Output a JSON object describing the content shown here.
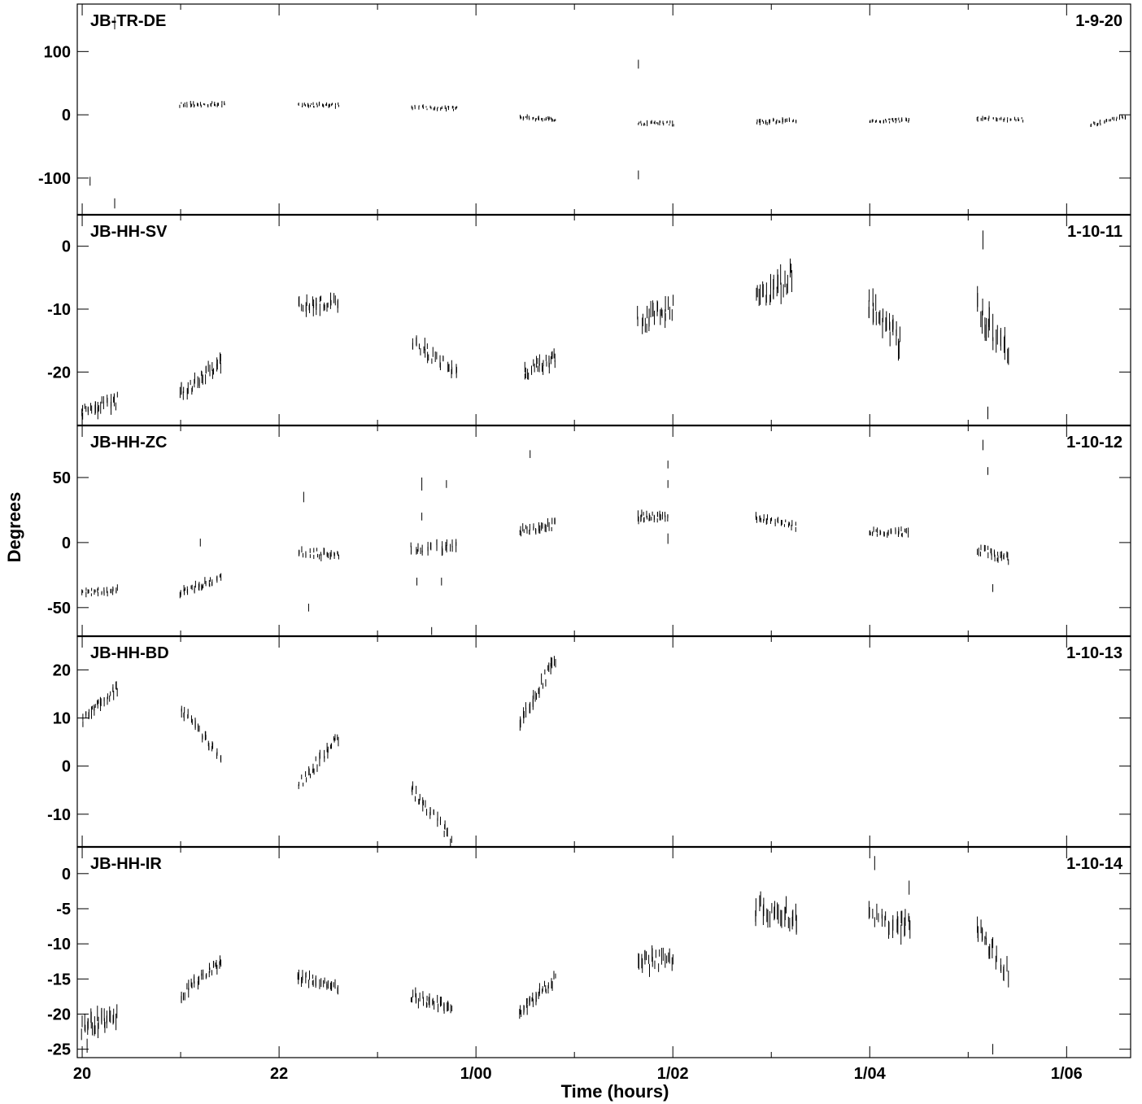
{
  "chart_data": {
    "type": "scatter",
    "xlabel": "Time (hours)",
    "ylabel": "Degrees",
    "xlim": [
      19.95,
      30.65
    ],
    "x_ticks": [
      20,
      22,
      24,
      26,
      28,
      30
    ],
    "x_tick_labels": [
      "20",
      "22",
      "1/00",
      "1/02",
      "1/04",
      "1/06"
    ],
    "x_minor_ticks": [
      21,
      23,
      25,
      27,
      29
    ],
    "mark_style": "vertical-error-bars",
    "color": "#000000",
    "panels": [
      {
        "label": "JB-TR-DE",
        "id": "1-9-20",
        "ylim": [
          -158,
          175
        ],
        "y_ticks": [
          -100,
          0,
          100
        ],
        "segments": [
          {
            "x0": 20.0,
            "x1": 20.33,
            "y0": -30,
            "y1": -8,
            "amp": 0,
            "n": 0
          },
          {
            "x0": 21.0,
            "x1": 21.45,
            "y0": 16,
            "y1": 17,
            "amp": 6,
            "n": 14
          },
          {
            "x0": 22.2,
            "x1": 22.6,
            "y0": 15,
            "y1": 15,
            "amp": 6,
            "n": 14
          },
          {
            "x0": 23.35,
            "x1": 23.8,
            "y0": 12,
            "y1": 10,
            "amp": 6,
            "n": 13
          },
          {
            "x0": 24.45,
            "x1": 24.8,
            "y0": -3,
            "y1": -8,
            "amp": 6,
            "n": 12
          },
          {
            "x0": 25.65,
            "x1": 26.0,
            "y0": -13,
            "y1": -14,
            "amp": 6,
            "n": 12
          },
          {
            "x0": 26.85,
            "x1": 27.25,
            "y0": -12,
            "y1": -8,
            "amp": 6,
            "n": 13
          },
          {
            "x0": 28.0,
            "x1": 28.4,
            "y0": -9,
            "y1": -9,
            "amp": 6,
            "n": 13
          },
          {
            "x0": 29.1,
            "x1": 29.55,
            "y0": -6,
            "y1": -8,
            "amp": 6,
            "n": 13
          },
          {
            "x0": 30.25,
            "x1": 30.6,
            "y0": -16,
            "y1": -2,
            "amp": 6,
            "n": 12
          }
        ],
        "outliers": [
          [
            20.33,
            145,
            20
          ],
          [
            20.33,
            -140,
            16
          ],
          [
            20.08,
            -105,
            14
          ],
          [
            25.65,
            80,
            14
          ],
          [
            25.65,
            -95,
            14
          ]
        ]
      },
      {
        "label": "JB-HH-SV",
        "id": "1-10-11",
        "ylim": [
          -28.5,
          5
        ],
        "y_ticks": [
          -20,
          -10,
          0
        ],
        "segments": [
          {
            "x0": 20.0,
            "x1": 20.35,
            "y0": -26.5,
            "y1": -24.5,
            "amp": 2,
            "n": 12
          },
          {
            "x0": 21.0,
            "x1": 21.4,
            "y0": -23.5,
            "y1": -18.5,
            "amp": 2,
            "n": 12
          },
          {
            "x0": 22.2,
            "x1": 22.6,
            "y0": -9.5,
            "y1": -9,
            "amp": 2,
            "n": 12
          },
          {
            "x0": 23.35,
            "x1": 23.8,
            "y0": -15,
            "y1": -20,
            "amp": 2,
            "n": 12
          },
          {
            "x0": 24.5,
            "x1": 24.8,
            "y0": -20,
            "y1": -18,
            "amp": 2,
            "n": 11
          },
          {
            "x0": 25.65,
            "x1": 26.0,
            "y0": -12,
            "y1": -10,
            "amp": 3,
            "n": 10
          },
          {
            "x0": 26.85,
            "x1": 27.2,
            "y0": -8.5,
            "y1": -5,
            "amp": 3.5,
            "n": 11
          },
          {
            "x0": 28.0,
            "x1": 28.3,
            "y0": -9,
            "y1": -15,
            "amp": 3.5,
            "n": 10
          },
          {
            "x0": 29.1,
            "x1": 29.4,
            "y0": -10,
            "y1": -18,
            "amp": 4.5,
            "n": 9
          }
        ],
        "outliers": [
          [
            20.0,
            -27.5,
            2
          ],
          [
            29.15,
            1,
            3
          ],
          [
            29.2,
            -26.5,
            2
          ]
        ]
      },
      {
        "label": "JB-HH-ZC",
        "id": "1-10-12",
        "ylim": [
          -72,
          90
        ],
        "y_ticks": [
          -50,
          0,
          50
        ],
        "segments": [
          {
            "x0": 20.0,
            "x1": 20.35,
            "y0": -38,
            "y1": -37,
            "amp": 5,
            "n": 12
          },
          {
            "x0": 21.0,
            "x1": 21.4,
            "y0": -38,
            "y1": -27,
            "amp": 6,
            "n": 12
          },
          {
            "x0": 22.2,
            "x1": 22.6,
            "y0": -7,
            "y1": -10,
            "amp": 6,
            "n": 12
          },
          {
            "x0": 23.35,
            "x1": 23.8,
            "y0": -5,
            "y1": -3,
            "amp": 8,
            "n": 10
          },
          {
            "x0": 24.45,
            "x1": 24.8,
            "y0": 8,
            "y1": 14,
            "amp": 7,
            "n": 12
          },
          {
            "x0": 25.65,
            "x1": 25.95,
            "y0": 20,
            "y1": 20,
            "amp": 6,
            "n": 12
          },
          {
            "x0": 26.85,
            "x1": 27.25,
            "y0": 20,
            "y1": 12,
            "amp": 5,
            "n": 12
          },
          {
            "x0": 28.0,
            "x1": 28.4,
            "y0": 8,
            "y1": 8,
            "amp": 5,
            "n": 12
          },
          {
            "x0": 29.1,
            "x1": 29.4,
            "y0": -5,
            "y1": -12,
            "amp": 7,
            "n": 10
          }
        ],
        "outliers": [
          [
            21.2,
            0,
            6
          ],
          [
            22.25,
            35,
            8
          ],
          [
            22.3,
            -50,
            6
          ],
          [
            23.45,
            45,
            10
          ],
          [
            23.45,
            20,
            6
          ],
          [
            23.7,
            45,
            6
          ],
          [
            23.4,
            -30,
            6
          ],
          [
            23.65,
            -30,
            6
          ],
          [
            23.55,
            -68,
            6
          ],
          [
            24.55,
            68,
            6
          ],
          [
            25.95,
            60,
            6
          ],
          [
            25.95,
            45,
            6
          ],
          [
            25.95,
            3,
            8
          ],
          [
            29.15,
            75,
            8
          ],
          [
            29.2,
            55,
            6
          ],
          [
            29.25,
            -35,
            6
          ]
        ]
      },
      {
        "label": "JB-HH-BD",
        "id": "1-10-13",
        "ylim": [
          -16.8,
          27
        ],
        "y_ticks": [
          -10,
          0,
          10,
          20
        ],
        "segments": [
          {
            "x0": 20.0,
            "x1": 20.35,
            "y0": 9.5,
            "y1": 16,
            "amp": 2,
            "n": 12
          },
          {
            "x0": 21.0,
            "x1": 21.4,
            "y0": 12,
            "y1": 2,
            "amp": 2,
            "n": 12
          },
          {
            "x0": 22.2,
            "x1": 22.6,
            "y0": -4,
            "y1": 6,
            "amp": 2,
            "n": 12
          },
          {
            "x0": 23.35,
            "x1": 23.75,
            "y0": -5,
            "y1": -15,
            "amp": 2,
            "n": 12
          },
          {
            "x0": 24.45,
            "x1": 24.8,
            "y0": 9,
            "y1": 22,
            "amp": 2.5,
            "n": 12
          }
        ],
        "outliers": []
      },
      {
        "label": "JB-HH-IR",
        "id": "1-10-14",
        "ylim": [
          -26.2,
          3.8
        ],
        "y_ticks": [
          -25,
          -20,
          -15,
          -10,
          -5,
          0
        ],
        "segments": [
          {
            "x0": 20.0,
            "x1": 20.35,
            "y0": -22,
            "y1": -20,
            "amp": 2.5,
            "n": 12
          },
          {
            "x0": 21.0,
            "x1": 21.4,
            "y0": -17.5,
            "y1": -12.5,
            "amp": 1.5,
            "n": 12
          },
          {
            "x0": 22.2,
            "x1": 22.6,
            "y0": -14.5,
            "y1": -16.5,
            "amp": 1.5,
            "n": 12
          },
          {
            "x0": 23.35,
            "x1": 23.75,
            "y0": -17.5,
            "y1": -19,
            "amp": 1.5,
            "n": 12
          },
          {
            "x0": 24.45,
            "x1": 24.8,
            "y0": -19.5,
            "y1": -15,
            "amp": 1.5,
            "n": 12
          },
          {
            "x0": 25.65,
            "x1": 26.0,
            "y0": -13,
            "y1": -12,
            "amp": 2.5,
            "n": 11
          },
          {
            "x0": 26.85,
            "x1": 27.25,
            "y0": -5,
            "y1": -6,
            "amp": 3,
            "n": 12
          },
          {
            "x0": 28.0,
            "x1": 28.4,
            "y0": -6,
            "y1": -7.5,
            "amp": 3,
            "n": 11
          },
          {
            "x0": 29.1,
            "x1": 29.4,
            "y0": -8,
            "y1": -14,
            "amp": 2.5,
            "n": 9
          }
        ],
        "outliers": [
          [
            20.05,
            -24.5,
            2
          ],
          [
            28.05,
            1.5,
            2
          ],
          [
            28.4,
            -2,
            2
          ],
          [
            29.25,
            -25,
            1.5
          ]
        ]
      }
    ]
  }
}
